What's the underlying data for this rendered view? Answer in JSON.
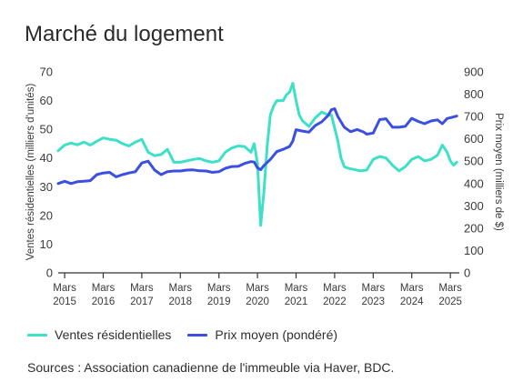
{
  "title": "Marché du logement",
  "sources": "Sources : Association canadienne de l'immeuble via Haver, BDC.",
  "colors": {
    "sales": "#3ee0c8",
    "price": "#3b4fe0",
    "axis": "#333333"
  },
  "chart_data": {
    "type": "line",
    "title": "Marché du logement",
    "x_ticks": [
      {
        "l1": "Mars",
        "l2": "2015",
        "t": 2015.167
      },
      {
        "l1": "Mars",
        "l2": "2016",
        "t": 2016.167
      },
      {
        "l1": "Mars",
        "l2": "2017",
        "t": 2017.167
      },
      {
        "l1": "Mars",
        "l2": "2018",
        "t": 2018.167
      },
      {
        "l1": "Mars",
        "l2": "2019",
        "t": 2019.167
      },
      {
        "l1": "Mars",
        "l2": "2020",
        "t": 2020.167
      },
      {
        "l1": "Mars",
        "l2": "2021",
        "t": 2021.167
      },
      {
        "l1": "Mars",
        "l2": "2022",
        "t": 2022.167
      },
      {
        "l1": "Mars",
        "l2": "2023",
        "t": 2023.167
      },
      {
        "l1": "Mars",
        "l2": "2024",
        "t": 2024.167
      },
      {
        "l1": "Mars",
        "l2": "2025",
        "t": 2025.167
      }
    ],
    "xlim": [
      2015.0,
      2025.4
    ],
    "y_left": {
      "label": "Ventes résidentielles (milliers d'unités)",
      "lim": [
        0,
        70
      ],
      "ticks": [
        "0",
        "10",
        "20",
        "30",
        "40",
        "50",
        "60",
        "70"
      ]
    },
    "y_right": {
      "label": "Prix moyen (milliers de $)",
      "lim": [
        0,
        900
      ],
      "ticks": [
        "0",
        "100",
        "200",
        "300",
        "400",
        "500",
        "600",
        "700",
        "800",
        "900"
      ]
    },
    "series": [
      {
        "name": "Ventes résidentielles",
        "axis": "left",
        "points": [
          [
            2015.0,
            42.5
          ],
          [
            2015.167,
            44.5
          ],
          [
            2015.333,
            45.2
          ],
          [
            2015.5,
            44.6
          ],
          [
            2015.667,
            45.5
          ],
          [
            2015.833,
            44.5
          ],
          [
            2016.0,
            45.8
          ],
          [
            2016.167,
            47.0
          ],
          [
            2016.333,
            46.5
          ],
          [
            2016.5,
            46.2
          ],
          [
            2016.667,
            45.0
          ],
          [
            2016.833,
            44.2
          ],
          [
            2017.0,
            45.5
          ],
          [
            2017.167,
            46.5
          ],
          [
            2017.333,
            42.0
          ],
          [
            2017.5,
            40.8
          ],
          [
            2017.667,
            41.2
          ],
          [
            2017.833,
            43.0
          ],
          [
            2018.0,
            38.5
          ],
          [
            2018.167,
            38.5
          ],
          [
            2018.333,
            39.0
          ],
          [
            2018.5,
            39.5
          ],
          [
            2018.667,
            39.8
          ],
          [
            2018.833,
            39.0
          ],
          [
            2019.0,
            38.5
          ],
          [
            2019.167,
            39.0
          ],
          [
            2019.333,
            42.0
          ],
          [
            2019.5,
            43.5
          ],
          [
            2019.667,
            44.2
          ],
          [
            2019.833,
            44.0
          ],
          [
            2020.0,
            42.0
          ],
          [
            2020.083,
            45.0
          ],
          [
            2020.167,
            38.0
          ],
          [
            2020.25,
            16.5
          ],
          [
            2020.333,
            28.0
          ],
          [
            2020.417,
            44.0
          ],
          [
            2020.5,
            55.0
          ],
          [
            2020.583,
            58.0
          ],
          [
            2020.667,
            60.0
          ],
          [
            2020.833,
            60.0
          ],
          [
            2020.917,
            62.0
          ],
          [
            2021.0,
            63.0
          ],
          [
            2021.083,
            66.0
          ],
          [
            2021.167,
            60.0
          ],
          [
            2021.25,
            55.0
          ],
          [
            2021.333,
            53.0
          ],
          [
            2021.5,
            51.0
          ],
          [
            2021.667,
            54.0
          ],
          [
            2021.833,
            56.0
          ],
          [
            2022.0,
            55.0
          ],
          [
            2022.083,
            55.0
          ],
          [
            2022.167,
            50.5
          ],
          [
            2022.25,
            46.0
          ],
          [
            2022.333,
            40.0
          ],
          [
            2022.417,
            37.0
          ],
          [
            2022.5,
            36.5
          ],
          [
            2022.667,
            36.0
          ],
          [
            2022.833,
            35.5
          ],
          [
            2023.0,
            35.8
          ],
          [
            2023.167,
            39.5
          ],
          [
            2023.333,
            40.5
          ],
          [
            2023.5,
            40.0
          ],
          [
            2023.667,
            37.5
          ],
          [
            2023.833,
            35.5
          ],
          [
            2024.0,
            37.0
          ],
          [
            2024.167,
            39.5
          ],
          [
            2024.333,
            40.5
          ],
          [
            2024.5,
            39.0
          ],
          [
            2024.667,
            39.5
          ],
          [
            2024.833,
            41.0
          ],
          [
            2024.958,
            44.5
          ],
          [
            2025.083,
            42.0
          ],
          [
            2025.167,
            39.0
          ],
          [
            2025.25,
            37.5
          ],
          [
            2025.333,
            38.5
          ]
        ]
      },
      {
        "name": "Prix moyen (pondéré)",
        "axis": "right",
        "points": [
          [
            2015.0,
            400
          ],
          [
            2015.167,
            410
          ],
          [
            2015.333,
            400
          ],
          [
            2015.5,
            408
          ],
          [
            2015.667,
            410
          ],
          [
            2015.833,
            413
          ],
          [
            2016.0,
            440
          ],
          [
            2016.167,
            447
          ],
          [
            2016.333,
            450
          ],
          [
            2016.5,
            430
          ],
          [
            2016.667,
            440
          ],
          [
            2016.833,
            447
          ],
          [
            2017.0,
            453
          ],
          [
            2017.167,
            492
          ],
          [
            2017.333,
            500
          ],
          [
            2017.5,
            460
          ],
          [
            2017.667,
            440
          ],
          [
            2017.833,
            453
          ],
          [
            2018.0,
            456
          ],
          [
            2018.167,
            456
          ],
          [
            2018.333,
            460
          ],
          [
            2018.5,
            461
          ],
          [
            2018.667,
            457
          ],
          [
            2018.833,
            456
          ],
          [
            2019.0,
            450
          ],
          [
            2019.167,
            453
          ],
          [
            2019.333,
            468
          ],
          [
            2019.5,
            476
          ],
          [
            2019.667,
            477
          ],
          [
            2019.833,
            490
          ],
          [
            2020.0,
            498
          ],
          [
            2020.083,
            496
          ],
          [
            2020.167,
            470
          ],
          [
            2020.25,
            462
          ],
          [
            2020.333,
            480
          ],
          [
            2020.5,
            508
          ],
          [
            2020.667,
            543
          ],
          [
            2020.833,
            553
          ],
          [
            2021.0,
            566
          ],
          [
            2021.083,
            590
          ],
          [
            2021.167,
            641
          ],
          [
            2021.333,
            635
          ],
          [
            2021.5,
            630
          ],
          [
            2021.667,
            660
          ],
          [
            2021.833,
            676
          ],
          [
            2022.0,
            705
          ],
          [
            2022.083,
            730
          ],
          [
            2022.167,
            735
          ],
          [
            2022.25,
            700
          ],
          [
            2022.417,
            652
          ],
          [
            2022.583,
            632
          ],
          [
            2022.75,
            642
          ],
          [
            2022.917,
            631
          ],
          [
            2023.0,
            621
          ],
          [
            2023.167,
            626
          ],
          [
            2023.333,
            686
          ],
          [
            2023.5,
            690
          ],
          [
            2023.667,
            652
          ],
          [
            2023.833,
            652
          ],
          [
            2024.0,
            656
          ],
          [
            2024.167,
            692
          ],
          [
            2024.333,
            678
          ],
          [
            2024.5,
            668
          ],
          [
            2024.667,
            680
          ],
          [
            2024.833,
            685
          ],
          [
            2024.958,
            668
          ],
          [
            2025.083,
            691
          ],
          [
            2025.25,
            698
          ],
          [
            2025.333,
            702
          ]
        ]
      }
    ],
    "grid": false,
    "legend_position": "bottom-left"
  }
}
